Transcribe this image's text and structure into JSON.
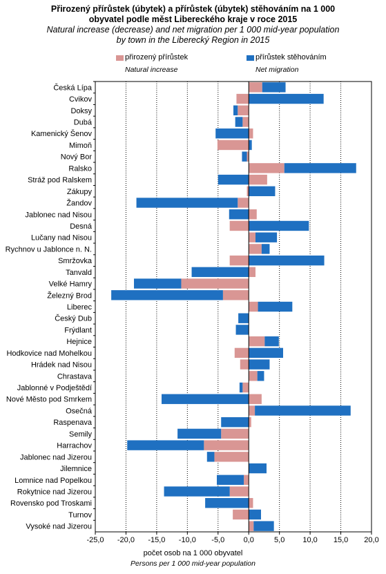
{
  "title": {
    "line1": "Přirozený přírůstek (úbytek) a přírůstek (úbytek) stěhováním na 1 000",
    "line2": "obyvatel podle měst Libereckého kraje v roce 2015",
    "en_line1": "Natural increase (decrease) and net migration per 1 000 mid-year population",
    "en_line2": "by town in the Liberecký Region in 2015"
  },
  "legend": {
    "natural_cz": "přirozený přírůstek",
    "natural_en": "Natural increase",
    "migration_cz": "přírůstek stěhováním",
    "migration_en": "Net migration"
  },
  "colors": {
    "natural": "#d99694",
    "migration": "#1f70c1"
  },
  "xlabel_cz": "počet osob na 1 000 obyvatel",
  "xlabel_en": "Persons per 1 000 mid-year population",
  "chart_data": {
    "type": "bar",
    "orientation": "horizontal",
    "stacked": true,
    "xlim": [
      -25,
      20
    ],
    "xticks": [
      "-25,0",
      "-20,0",
      "-15,0",
      "-10,0",
      "-5,0",
      "0,0",
      "5,0",
      "10,0",
      "15,0",
      "20,0"
    ],
    "grid": "vertical dotted",
    "categories": [
      "Česká Lípa",
      "Cvikov",
      "Doksy",
      "Dubá",
      "Kamenický Šenov",
      "Mimoň",
      "Nový Bor",
      "Ralsko",
      "Stráž pod Ralskem",
      "Zákupy",
      "Žandov",
      "Jablonec nad Nisou",
      "Desná",
      "Lučany nad Nisou",
      "Rychnov u Jablonce n. N.",
      "Smržovka",
      "Tanvald",
      "Velké Hamry",
      "Železný Brod",
      "Liberec",
      "Český Dub",
      "Frýdlant",
      "Hejnice",
      "Hodkovice nad Mohelkou",
      "Hrádek nad Nisou",
      "Chrastava",
      "Jablonné v Podještědí",
      "Nové Město pod Smrkem",
      "Oseč​ná",
      "Raspenava",
      "Semily",
      "Harrachov",
      "Jablonec nad Jizerou",
      "Jilemnice",
      "Lomnice nad Popelkou",
      "Rokytnice nad Jizerou",
      "Rovensko pod Troskami",
      "Turnov",
      "Vysoké nad Jizerou"
    ],
    "series": [
      {
        "name": "přirozený přírůstek",
        "values": [
          2.2,
          -2.0,
          -1.8,
          -1.0,
          0.7,
          -5.1,
          -0.3,
          5.8,
          3.0,
          -0.3,
          -1.8,
          1.3,
          -3.1,
          1.1,
          2.1,
          -3.1,
          1.1,
          -11.0,
          -4.2,
          1.5,
          0.0,
          0.0,
          2.6,
          -2.3,
          -1.4,
          1.4,
          -1.0,
          2.1,
          1.0,
          0.4,
          -4.5,
          -7.3,
          -5.6,
          0.0,
          -0.8,
          -3.1,
          0.7,
          -2.6,
          0.8
        ]
      },
      {
        "name": "přírůstek stěhováním",
        "values": [
          3.8,
          12.2,
          -0.7,
          -1.2,
          -5.4,
          0.5,
          -0.8,
          11.7,
          -5.0,
          4.3,
          -16.5,
          -3.2,
          9.8,
          3.5,
          1.3,
          12.3,
          -9.3,
          -7.7,
          -18.2,
          5.6,
          -1.7,
          -2.1,
          2.3,
          5.6,
          3.4,
          1.1,
          -0.5,
          -14.2,
          15.6,
          -4.5,
          -7.1,
          -12.5,
          -1.2,
          2.9,
          -4.4,
          -10.7,
          -7.1,
          2.0,
          3.3
        ]
      }
    ]
  }
}
